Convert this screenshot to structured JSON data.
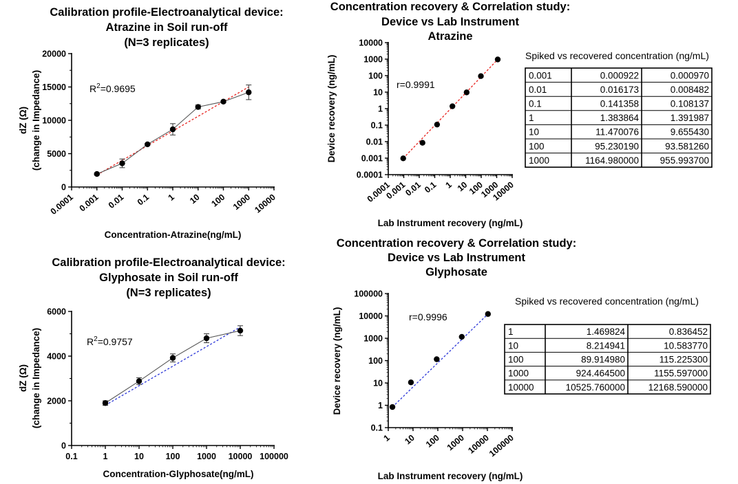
{
  "chart_data": [
    {
      "id": "atz_cal",
      "type": "line",
      "title": [
        "Calibration profile-Electroanalytical device:",
        "Atrazine in Soil run-off",
        "(N=3 replicates)"
      ],
      "xlabel": "Concentration-Atrazine(ng/mL)",
      "ylabel": [
        "dZ (Ω)",
        "(change in Impedance)"
      ],
      "xscale": "log",
      "xlim": [
        0.0001,
        10000
      ],
      "xticks": [
        0.0001,
        0.001,
        0.01,
        0.1,
        1,
        10,
        100,
        1000,
        10000
      ],
      "xticklabels": [
        "0.0001",
        "0.001",
        "0.01",
        "0.1",
        "1",
        "10",
        "100",
        "1000",
        "10000"
      ],
      "yscale": "linear",
      "ylim": [
        0,
        20000
      ],
      "yticks": [
        0,
        5000,
        10000,
        15000,
        20000
      ],
      "yticklabels": [
        "0",
        "5000",
        "10000",
        "15000",
        "20000"
      ],
      "x": [
        0.001,
        0.01,
        0.1,
        1,
        10,
        100,
        1000
      ],
      "series": [
        {
          "name": "mean",
          "values": [
            1950,
            3550,
            6400,
            8650,
            12000,
            12800,
            14200
          ],
          "errors": [
            150,
            650,
            150,
            850,
            300,
            150,
            1100
          ]
        }
      ],
      "fit": {
        "color": "#e8201c",
        "from": [
          0.001,
          1800
        ],
        "to": [
          1000,
          15000
        ]
      },
      "annotation": {
        "base": "R",
        "sup": "2",
        "rest": "=0.9695"
      }
    },
    {
      "id": "gly_cal",
      "type": "line",
      "title": [
        "Calibration profile-Electroanalytical device:",
        "Glyphosate in Soil run-off",
        "(N=3 replicates)"
      ],
      "xlabel": "Concentration-Glyphosate(ng/mL)",
      "ylabel": [
        "dZ (Ω)",
        "(change in Impedance)"
      ],
      "xscale": "log",
      "xlim": [
        0.1,
        100000
      ],
      "xticks": [
        0.1,
        1,
        10,
        100,
        1000,
        10000,
        100000
      ],
      "xticklabels": [
        "0.1",
        "1",
        "10",
        "100",
        "1000",
        "10000",
        "100000"
      ],
      "yscale": "linear",
      "ylim": [
        0,
        6000
      ],
      "yticks": [
        0,
        2000,
        4000,
        6000
      ],
      "yticklabels": [
        "0",
        "2000",
        "4000",
        "6000"
      ],
      "x": [
        1,
        10,
        100,
        1000,
        10000
      ],
      "series": [
        {
          "name": "mean",
          "values": [
            1900,
            2880,
            3920,
            4800,
            5140
          ],
          "errors": [
            100,
            150,
            180,
            200,
            220
          ]
        }
      ],
      "fit": {
        "color": "#2a35d8",
        "from": [
          1,
          1800
        ],
        "to": [
          10000,
          5300
        ]
      },
      "annotation": {
        "base": "R",
        "sup": "2",
        "rest": "=0.9757"
      }
    },
    {
      "id": "atz_corr",
      "type": "scatter",
      "title": [
        "Concentration recovery & Correlation study:",
        "Device vs Lab Instrument",
        "Atrazine"
      ],
      "xlabel": "Lab Instrument recovery (ng/mL)",
      "ylabel": [
        "Device recovery (ng/mL)"
      ],
      "xscale": "log",
      "xlim": [
        0.0001,
        10000
      ],
      "xticks": [
        0.0001,
        0.001,
        0.01,
        0.1,
        1,
        10,
        100,
        1000,
        10000
      ],
      "xticklabels": [
        "0.0001",
        "0.001",
        "0.01",
        "0.1",
        "1",
        "10",
        "100",
        "1000",
        "10000"
      ],
      "yscale": "log",
      "ylim": [
        0.0001,
        10000
      ],
      "yticks": [
        0.0001,
        0.001,
        0.01,
        0.1,
        1,
        10,
        100,
        1000,
        10000
      ],
      "yticklabels": [
        "0.0001",
        "0.001",
        "0.01",
        "0.1",
        "1",
        "10",
        "100",
        "1000",
        "10000"
      ],
      "x": [
        0.000922,
        0.016173,
        0.141358,
        1.383864,
        11.470076,
        95.23019,
        1164.98
      ],
      "series": [
        {
          "name": "recovery",
          "values": [
            0.00097,
            0.008482,
            0.108137,
            1.391987,
            9.65543,
            93.58126,
            955.9937
          ]
        }
      ],
      "fit": {
        "color": "#e8201c",
        "from": [
          0.000922,
          0.00097
        ],
        "to": [
          1164.98,
          955.9937
        ]
      },
      "annotation": {
        "base": "r=0.9991",
        "sup": "",
        "rest": ""
      }
    },
    {
      "id": "gly_corr",
      "type": "scatter",
      "title": [
        "Concentration recovery & Correlation study:",
        "Device vs Lab Instrument",
        "Glyphosate"
      ],
      "xlabel": "Lab Instrument recovery (ng/mL)",
      "ylabel": [
        "Device recovery (ng/mL)"
      ],
      "xscale": "log",
      "xlim": [
        1,
        100000
      ],
      "xticks": [
        1,
        10,
        100,
        1000,
        10000,
        100000
      ],
      "xticklabels": [
        "1",
        "10",
        "100",
        "1000",
        "10000",
        "100000"
      ],
      "yscale": "log",
      "ylim": [
        0.1,
        100000
      ],
      "yticks": [
        0.1,
        1,
        10,
        100,
        1000,
        10000,
        100000
      ],
      "yticklabels": [
        "0.1",
        "1",
        "10",
        "100",
        "1000",
        "10000",
        "100000"
      ],
      "x": [
        1.469824,
        8.214941,
        89.91498,
        924.4645,
        10525.76
      ],
      "series": [
        {
          "name": "recovery",
          "values": [
            0.836452,
            10.58377,
            115.2253,
            1155.597,
            12168.59
          ]
        }
      ],
      "fit": {
        "color": "#2a35d8",
        "from": [
          1.469824,
          0.836452
        ],
        "to": [
          10525.76,
          12168.59
        ]
      },
      "annotation": {
        "base": "r=0.9996",
        "sup": "",
        "rest": ""
      }
    }
  ],
  "tables": {
    "atrazine": {
      "caption": "Spiked vs recovered concentration (ng/mL)",
      "rows": [
        [
          "0.001",
          "0.000922",
          "0.000970"
        ],
        [
          "0.01",
          "0.016173",
          "0.008482"
        ],
        [
          "0.1",
          "0.141358",
          "0.108137"
        ],
        [
          "1",
          "1.383864",
          "1.391987"
        ],
        [
          "10",
          "11.470076",
          "9.655430"
        ],
        [
          "100",
          "95.230190",
          "93.581260"
        ],
        [
          "1000",
          "1164.980000",
          "955.993700"
        ]
      ]
    },
    "glyphosate": {
      "caption": "Spiked vs recovered concentration (ng/mL)",
      "rows": [
        [
          "1",
          "1.469824",
          "0.836452"
        ],
        [
          "10",
          "8.214941",
          "10.583770"
        ],
        [
          "100",
          "89.914980",
          "115.225300"
        ],
        [
          "1000",
          "924.464500",
          "1155.597000"
        ],
        [
          "10000",
          "10525.760000",
          "12168.590000"
        ]
      ]
    }
  },
  "colors": {
    "axis": "#000000",
    "marker": "#000000",
    "connector": "#555555"
  }
}
